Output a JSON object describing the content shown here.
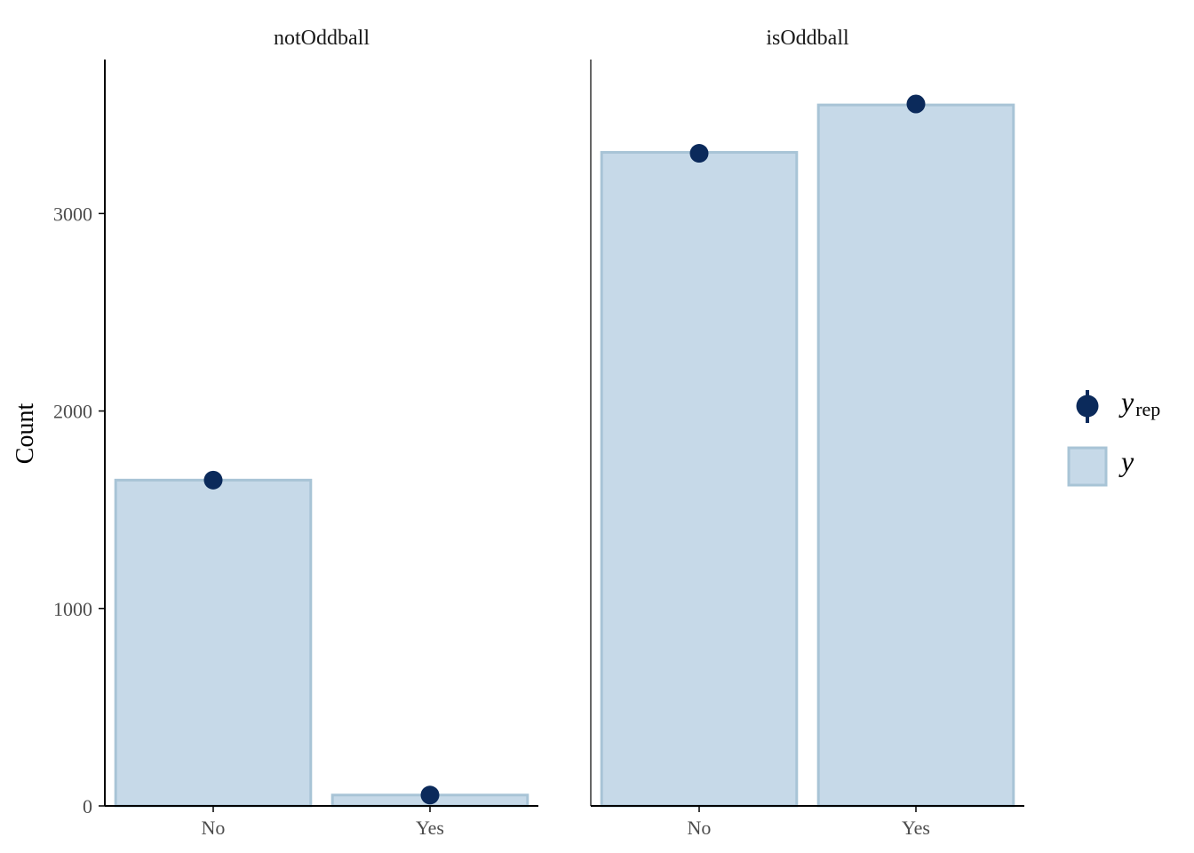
{
  "chart_data": {
    "type": "bar",
    "ylabel": "Count",
    "xlabel": "",
    "ylim": [
      0,
      3780
    ],
    "yticks": [
      0,
      1000,
      2000,
      3000
    ],
    "categories": [
      "No",
      "Yes"
    ],
    "facets": [
      {
        "title": "notOddball",
        "y_values": [
          1650,
          55
        ],
        "yrep_values": [
          1650,
          55
        ]
      },
      {
        "title": "isOddball",
        "y_values": [
          3310,
          3550
        ],
        "yrep_values": [
          3305,
          3555
        ]
      }
    ],
    "legend": {
      "placement": "right",
      "items": [
        {
          "name": "y",
          "subscript": "rep",
          "marker": "point-interval"
        },
        {
          "name": "y",
          "subscript": "",
          "marker": "bar"
        }
      ]
    },
    "colors": {
      "bar_fill": "#c6d9e8",
      "bar_stroke": "#a8c4d6",
      "point": "#0b2a5b",
      "axis": "#000000"
    },
    "grid": false
  }
}
